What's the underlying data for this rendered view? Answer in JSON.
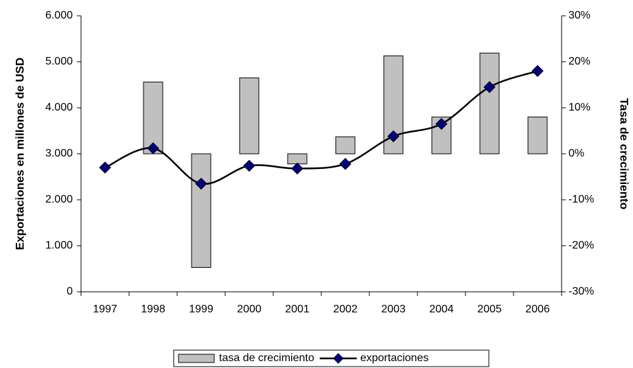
{
  "chart_data": {
    "type": "bar_line",
    "y_label": "Exportaciones en millones de USD",
    "y2_label": "Tasa de crecimiento",
    "categories": [
      "1997",
      "1998",
      "1999",
      "2000",
      "2001",
      "2002",
      "2003",
      "2004",
      "2005",
      "2006"
    ],
    "series": [
      {
        "name": "tasa de crecimiento",
        "type": "bar",
        "axis": "y2",
        "color": "#c0c0c0",
        "values": [
          null,
          15.6,
          -24.7,
          16.5,
          -2.2,
          3.7,
          21.3,
          8.0,
          21.9,
          8.0
        ]
      },
      {
        "name": "exportaciones",
        "type": "line",
        "axis": "y",
        "color": "#000000",
        "marker_color": "#000080",
        "values": [
          2700,
          3120,
          2350,
          2740,
          2680,
          2780,
          3380,
          3650,
          4450,
          4800
        ]
      }
    ],
    "ylim": [
      0,
      6000
    ],
    "yticks": [
      0,
      {
        "value": 1000,
        "label": "1.000"
      },
      {
        "value": 2000,
        "label": "2.000"
      },
      {
        "value": 3000,
        "label": "3.000"
      },
      {
        "value": 4000,
        "label": "4.000"
      },
      {
        "value": 5000,
        "label": "5.000"
      },
      {
        "value": 6000,
        "label": "6.000"
      }
    ],
    "y2lim": [
      -30,
      30
    ],
    "y2ticks": [
      {
        "value": -30,
        "label": "-30%"
      },
      {
        "value": -20,
        "label": "-20%"
      },
      {
        "value": -10,
        "label": "-10%"
      },
      {
        "value": 0,
        "label": "0%"
      },
      {
        "value": 10,
        "label": "10%"
      },
      {
        "value": 20,
        "label": "20%"
      },
      {
        "value": 30,
        "label": "30%"
      }
    ],
    "legend": "bottom",
    "grid": false
  }
}
